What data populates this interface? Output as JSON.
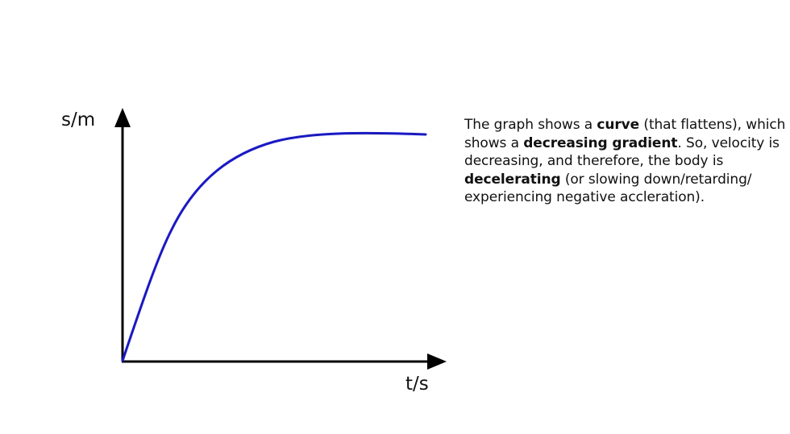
{
  "graph": {
    "y_axis_label": "s/m",
    "x_axis_label": "t/s",
    "curve_color": "#1414e6",
    "axis_color": "#000000",
    "curve_shape": "increasing curve that flattens (decreasing gradient)"
  },
  "explanation": {
    "l1_a": "The graph shows a ",
    "l1_b": "curve",
    "l1_c": " (that flattens), which",
    "l2_a": "shows a ",
    "l2_b": "decreasing gradient",
    "l2_c": ". So, velocity is",
    "l3": "decreasing, and therefore, the body is",
    "l4_a": "decelerating",
    "l4_b": " (or slowing down/retarding/",
    "l5": "experiencing negative accleration)."
  }
}
